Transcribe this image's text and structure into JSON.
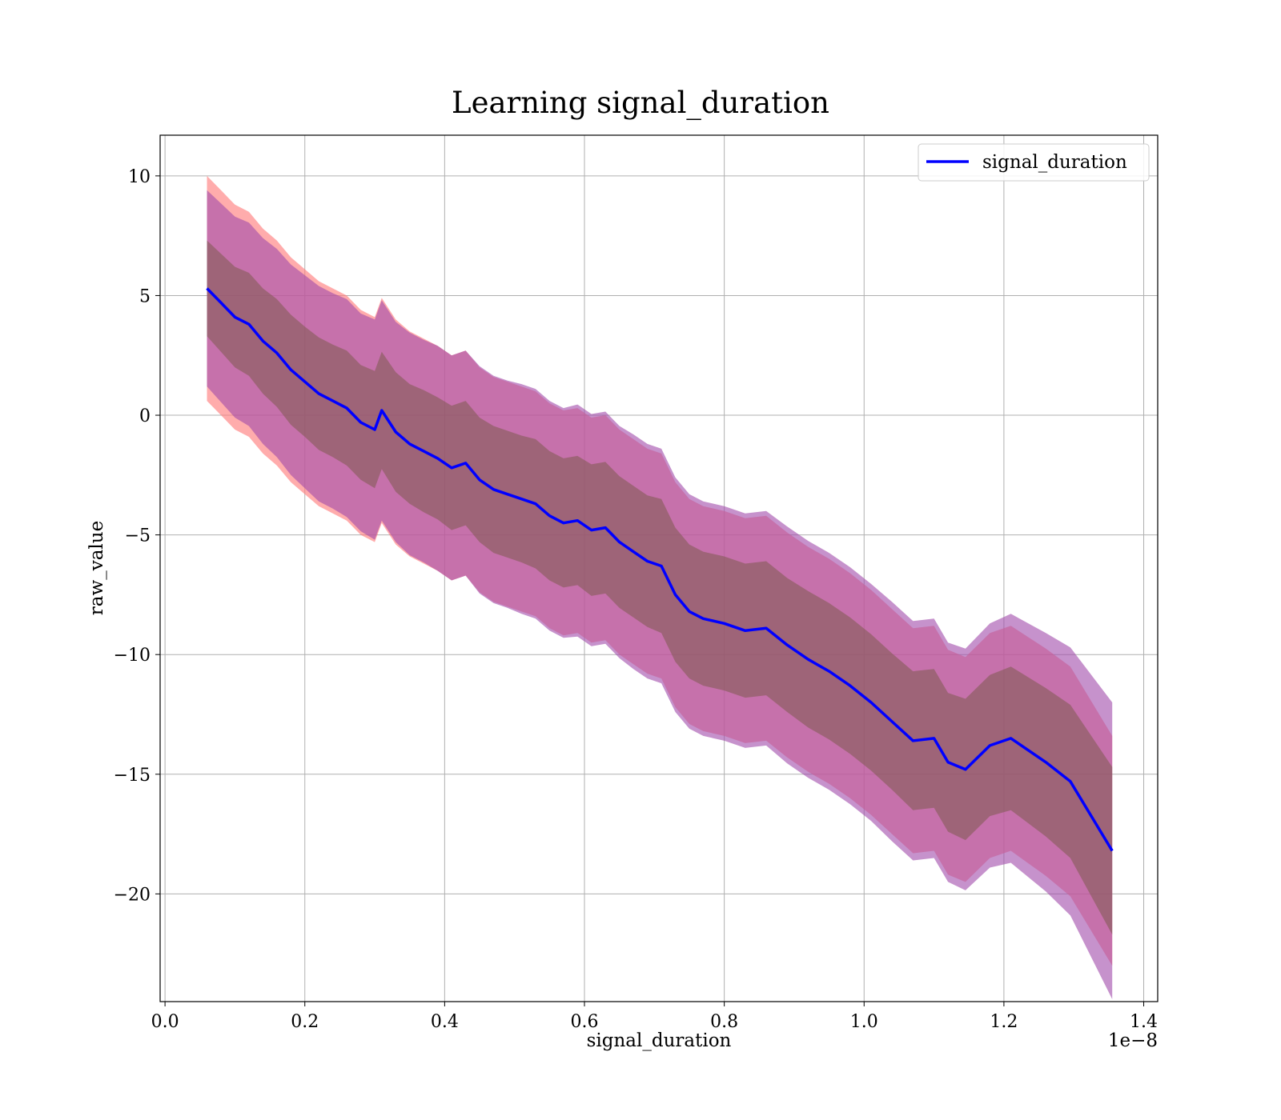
{
  "chart_data": {
    "type": "area",
    "title": "Learning signal_duration",
    "xlabel": "signal_duration",
    "ylabel": "raw_value",
    "x_offset_label": "1e−8",
    "xlim": [
      -0.007,
      1.42
    ],
    "ylim": [
      -24.5,
      11.7
    ],
    "x_ticks": [
      0.0,
      0.2,
      0.4,
      0.6,
      0.8,
      1.0,
      1.2,
      1.4
    ],
    "x_tick_labels": [
      "0.0",
      "0.2",
      "0.4",
      "0.6",
      "0.8",
      "1.0",
      "1.2",
      "1.4"
    ],
    "y_ticks": [
      10,
      5,
      0,
      -5,
      -10,
      -15,
      -20
    ],
    "y_tick_labels": [
      "10",
      "5",
      "0",
      "−5",
      "−10",
      "−15",
      "−20"
    ],
    "grid": true,
    "legend": {
      "position": "top-right",
      "entries": [
        "signal_duration"
      ]
    },
    "colors": {
      "line": "#0000ff",
      "outer_band": "#ff7f7f",
      "middle_band": "#a04aaa",
      "inner_band": "#7d5a4f"
    },
    "series": [
      {
        "name": "signal_duration",
        "x": [
          0.06,
          0.08,
          0.1,
          0.12,
          0.14,
          0.16,
          0.18,
          0.2,
          0.22,
          0.24,
          0.26,
          0.28,
          0.3,
          0.31,
          0.33,
          0.35,
          0.37,
          0.39,
          0.41,
          0.43,
          0.45,
          0.47,
          0.49,
          0.51,
          0.53,
          0.55,
          0.57,
          0.59,
          0.61,
          0.63,
          0.65,
          0.67,
          0.69,
          0.71,
          0.73,
          0.75,
          0.77,
          0.8,
          0.83,
          0.86,
          0.89,
          0.92,
          0.95,
          0.98,
          1.01,
          1.04,
          1.07,
          1.1,
          1.12,
          1.145,
          1.18,
          1.21,
          1.26,
          1.295,
          1.355
        ],
        "y": [
          5.3,
          4.7,
          4.1,
          3.8,
          3.1,
          2.6,
          1.9,
          1.4,
          0.9,
          0.6,
          0.3,
          -0.3,
          -0.6,
          0.2,
          -0.7,
          -1.2,
          -1.5,
          -1.8,
          -2.2,
          -2.0,
          -2.7,
          -3.1,
          -3.3,
          -3.5,
          -3.7,
          -4.2,
          -4.5,
          -4.4,
          -4.8,
          -4.7,
          -5.3,
          -5.7,
          -6.1,
          -6.3,
          -7.5,
          -8.2,
          -8.5,
          -8.7,
          -9.0,
          -8.9,
          -9.6,
          -10.2,
          -10.7,
          -11.3,
          -12.0,
          -12.8,
          -13.6,
          -13.5,
          -14.5,
          -14.8,
          -13.8,
          -13.5,
          -14.5,
          -15.3,
          -18.2
        ]
      }
    ],
    "bands": {
      "inner_half_width": [
        2.0,
        2.05,
        2.1,
        2.15,
        2.2,
        2.25,
        2.3,
        2.3,
        2.35,
        2.35,
        2.4,
        2.4,
        2.45,
        2.45,
        2.5,
        2.5,
        2.55,
        2.55,
        2.6,
        2.6,
        2.6,
        2.65,
        2.65,
        2.65,
        2.7,
        2.7,
        2.7,
        2.7,
        2.75,
        2.75,
        2.75,
        2.75,
        2.75,
        2.8,
        2.8,
        2.8,
        2.8,
        2.8,
        2.8,
        2.8,
        2.8,
        2.85,
        2.85,
        2.85,
        2.85,
        2.85,
        2.9,
        2.9,
        2.9,
        2.95,
        2.95,
        3.0,
        3.1,
        3.2,
        3.5
      ],
      "middle_half_width": [
        4.1,
        4.15,
        4.2,
        4.25,
        4.3,
        4.35,
        4.4,
        4.45,
        4.5,
        4.5,
        4.55,
        4.55,
        4.6,
        4.6,
        4.6,
        4.65,
        4.65,
        4.7,
        4.7,
        4.7,
        4.75,
        4.75,
        4.75,
        4.8,
        4.8,
        4.8,
        4.8,
        4.85,
        4.85,
        4.85,
        4.85,
        4.9,
        4.9,
        4.9,
        4.9,
        4.9,
        4.9,
        4.9,
        4.9,
        4.9,
        4.95,
        4.95,
        4.95,
        4.95,
        4.95,
        5.0,
        5.0,
        5.0,
        5.0,
        5.05,
        5.1,
        5.2,
        5.4,
        5.6,
        6.2
      ],
      "outer_half_width": [
        4.7,
        4.7,
        4.7,
        4.7,
        4.7,
        4.7,
        4.7,
        4.7,
        4.7,
        4.7,
        4.7,
        4.7,
        4.7,
        4.7,
        4.7,
        4.7,
        4.7,
        4.7,
        4.7,
        4.7,
        4.7,
        4.7,
        4.7,
        4.7,
        4.7,
        4.7,
        4.7,
        4.7,
        4.7,
        4.7,
        4.7,
        4.7,
        4.7,
        4.7,
        4.7,
        4.7,
        4.7,
        4.7,
        4.7,
        4.7,
        4.7,
        4.7,
        4.7,
        4.7,
        4.7,
        4.7,
        4.7,
        4.7,
        4.7,
        4.7,
        4.7,
        4.7,
        4.75,
        4.8,
        4.8
      ]
    }
  }
}
